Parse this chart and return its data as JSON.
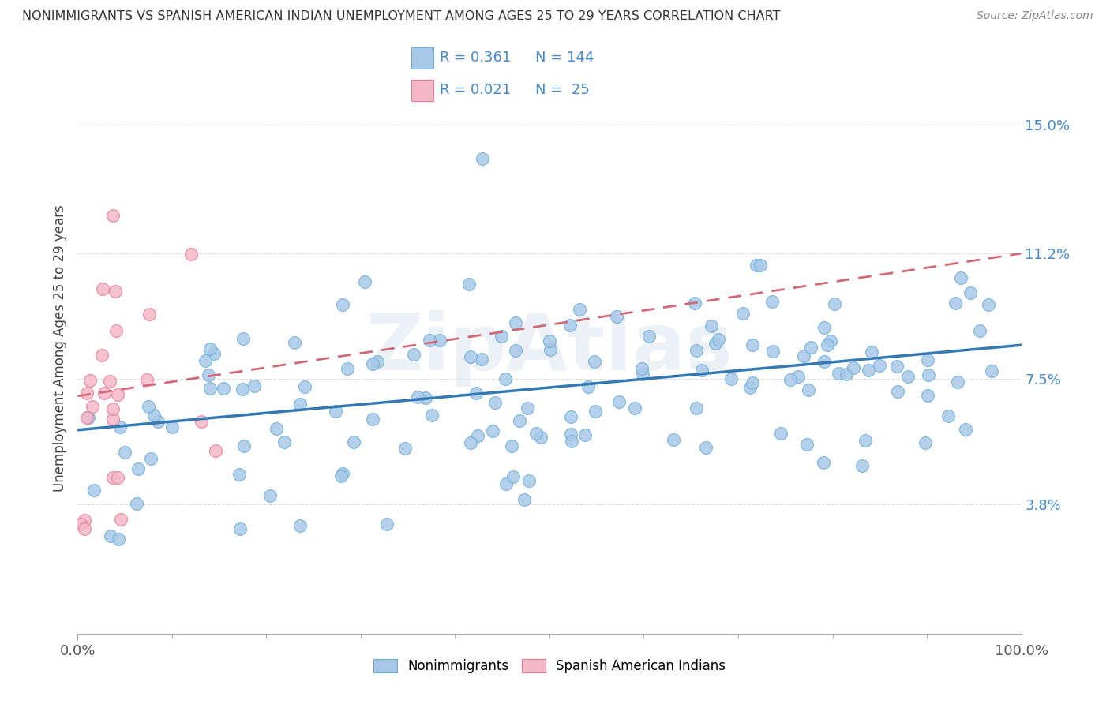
{
  "title": "NONIMMIGRANTS VS SPANISH AMERICAN INDIAN UNEMPLOYMENT AMONG AGES 25 TO 29 YEARS CORRELATION CHART",
  "source": "Source: ZipAtlas.com",
  "ylabel": "Unemployment Among Ages 25 to 29 years",
  "xlim": [
    0,
    100
  ],
  "ylim": [
    0,
    16.8
  ],
  "yticks": [
    3.8,
    7.5,
    11.2,
    15.0
  ],
  "yticklabels": [
    "3.8%",
    "7.5%",
    "11.2%",
    "15.0%"
  ],
  "xticklabels_left": "0.0%",
  "xticklabels_right": "100.0%",
  "nonimmigrants_R": 0.361,
  "nonimmigrants_N": 144,
  "spanish_R": 0.021,
  "spanish_N": 25,
  "nonimmigrant_color": "#a8c8e8",
  "nonimmigrant_edge_color": "#6aaed6",
  "spanish_color": "#f4b8c8",
  "spanish_edge_color": "#e87898",
  "nonimmigrant_line_color": "#3478b4",
  "spanish_line_color": "#d06878",
  "background_color": "#ffffff",
  "watermark": "ZipAtlas",
  "grid_color": "#dddddd",
  "tick_label_color": "#4488cc",
  "ni_line_y0": 6.0,
  "ni_line_y100": 8.5,
  "sp_line_y0": 7.0,
  "sp_line_y100": 11.2
}
